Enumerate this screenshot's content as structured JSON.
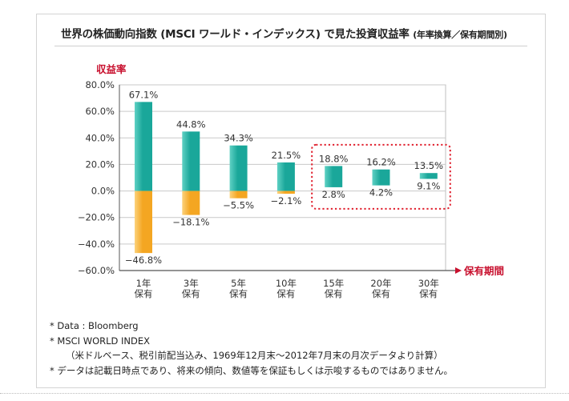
{
  "page": {
    "title_main": "世界の株価動向指数 (MSCI ワールド・インデックス) で見た投資収益率",
    "title_sub": "(年率換算／保有期間別)",
    "notes": [
      "* Data : Bloomberg",
      "* MSCI WORLD INDEX",
      "（米ドルベース、税引前配当込み、1969年12月末〜2012年7月末の月次データより計算）",
      "* データは記載日時点であり、将来の傾向、数値等を保証もしくは示唆するものではありません。"
    ]
  },
  "chart_data": {
    "type": "bar",
    "ylabel": "収益率",
    "xlabel": "保有期間",
    "ylim": [
      -60,
      80
    ],
    "yticks": [
      80,
      60,
      40,
      20,
      0,
      -20,
      -40,
      -60
    ],
    "ytick_labels": [
      "80.0%",
      "60.0%",
      "40.0%",
      "20.0%",
      "0.0%",
      "−20.0%",
      "−40.0%",
      "−60.0%"
    ],
    "categories": [
      [
        "1年",
        "保有"
      ],
      [
        "3年",
        "保有"
      ],
      [
        "5年",
        "保有"
      ],
      [
        "10年",
        "保有"
      ],
      [
        "15年",
        "保有"
      ],
      [
        "20年",
        "保有"
      ],
      [
        "30年",
        "保有"
      ]
    ],
    "max_values": [
      67.1,
      44.8,
      34.3,
      21.5,
      18.8,
      16.2,
      13.5
    ],
    "min_values": [
      -46.8,
      -18.1,
      -5.5,
      -2.1,
      2.8,
      4.2,
      9.1
    ],
    "max_labels": [
      "67.1%",
      "44.8%",
      "34.3%",
      "21.5%",
      "18.8%",
      "16.2%",
      "13.5%"
    ],
    "min_labels": [
      "−46.8%",
      "−18.1%",
      "−5.5%",
      "−2.1%",
      "2.8%",
      "4.2%",
      "9.1%"
    ],
    "grid": true,
    "highlight_categories": [
      4,
      5,
      6
    ],
    "colors": {
      "positive": "#1aa79a",
      "positive_light": "#5fd1c4",
      "negative": "#f4a622",
      "negative_light": "#fcd27c",
      "axis_label": "#c8102e",
      "highlight_border": "#e0202e",
      "axis_arrow": "#c8102e",
      "grid": "#c9c9c9"
    }
  }
}
